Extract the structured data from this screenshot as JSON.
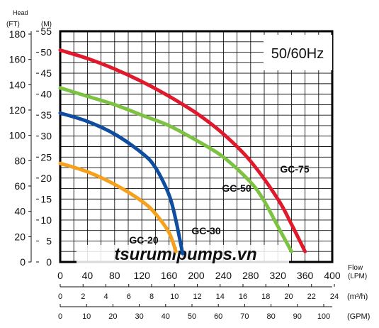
{
  "chart_data": {
    "type": "line",
    "annotation": "50/60Hz",
    "watermark": "tsurumipumps.vn",
    "y_axis_left": {
      "title": "Head",
      "unit_ft": "(FT)",
      "unit_m": "(M)",
      "ft_ticks": [
        "180",
        "160",
        "140",
        "120",
        "100",
        "80",
        "60",
        "40",
        "20",
        "0"
      ],
      "m_ticks": [
        "55",
        "50",
        "45",
        "40",
        "35",
        "30",
        "25",
        "20",
        "15",
        "10",
        "5",
        "0"
      ],
      "ylim_m": [
        0,
        55
      ]
    },
    "x_axes": {
      "lpm": {
        "label_top": "Flow",
        "label_unit": "(LPM)",
        "ticks": [
          "0",
          "40",
          "80",
          "120",
          "160",
          "200",
          "240",
          "280",
          "320",
          "360",
          "400"
        ],
        "xlim": [
          0,
          400
        ]
      },
      "m3h": {
        "unit": "(m³/h)",
        "ticks": [
          "0",
          "2",
          "4",
          "6",
          "8",
          "10",
          "12",
          "14",
          "16",
          "18",
          "20",
          "22",
          "24"
        ]
      },
      "gpm": {
        "unit": "(GPM)",
        "ticks": [
          "0",
          "10",
          "20",
          "30",
          "40",
          "50",
          "60",
          "70",
          "80",
          "90",
          "100"
        ]
      }
    },
    "grid": true,
    "series": [
      {
        "name": "GC-75",
        "color": "#e01a2c",
        "x": [
          0,
          40,
          80,
          120,
          160,
          200,
          240,
          280,
          320,
          340,
          360
        ],
        "y": [
          50.5,
          48.5,
          46,
          43,
          39.5,
          35.5,
          30.5,
          24,
          15,
          9,
          2.5
        ]
      },
      {
        "name": "GC-50",
        "color": "#7dc242",
        "x": [
          0,
          40,
          80,
          120,
          160,
          200,
          240,
          280,
          300,
          320,
          340
        ],
        "y": [
          41.5,
          39.5,
          37.5,
          35,
          32.5,
          29,
          25,
          19,
          14.5,
          8.5,
          2.5
        ]
      },
      {
        "name": "GC-30",
        "color": "#0f4da0",
        "x": [
          0,
          40,
          80,
          120,
          140,
          160,
          170,
          180
        ],
        "y": [
          35.5,
          33.5,
          30.5,
          26,
          22.5,
          16,
          10,
          2
        ]
      },
      {
        "name": "GC-20",
        "color": "#f5a11c",
        "x": [
          0,
          40,
          80,
          120,
          140,
          160,
          170
        ],
        "y": [
          23.5,
          21.5,
          18.5,
          14.5,
          11.5,
          7,
          2.5
        ]
      }
    ]
  }
}
